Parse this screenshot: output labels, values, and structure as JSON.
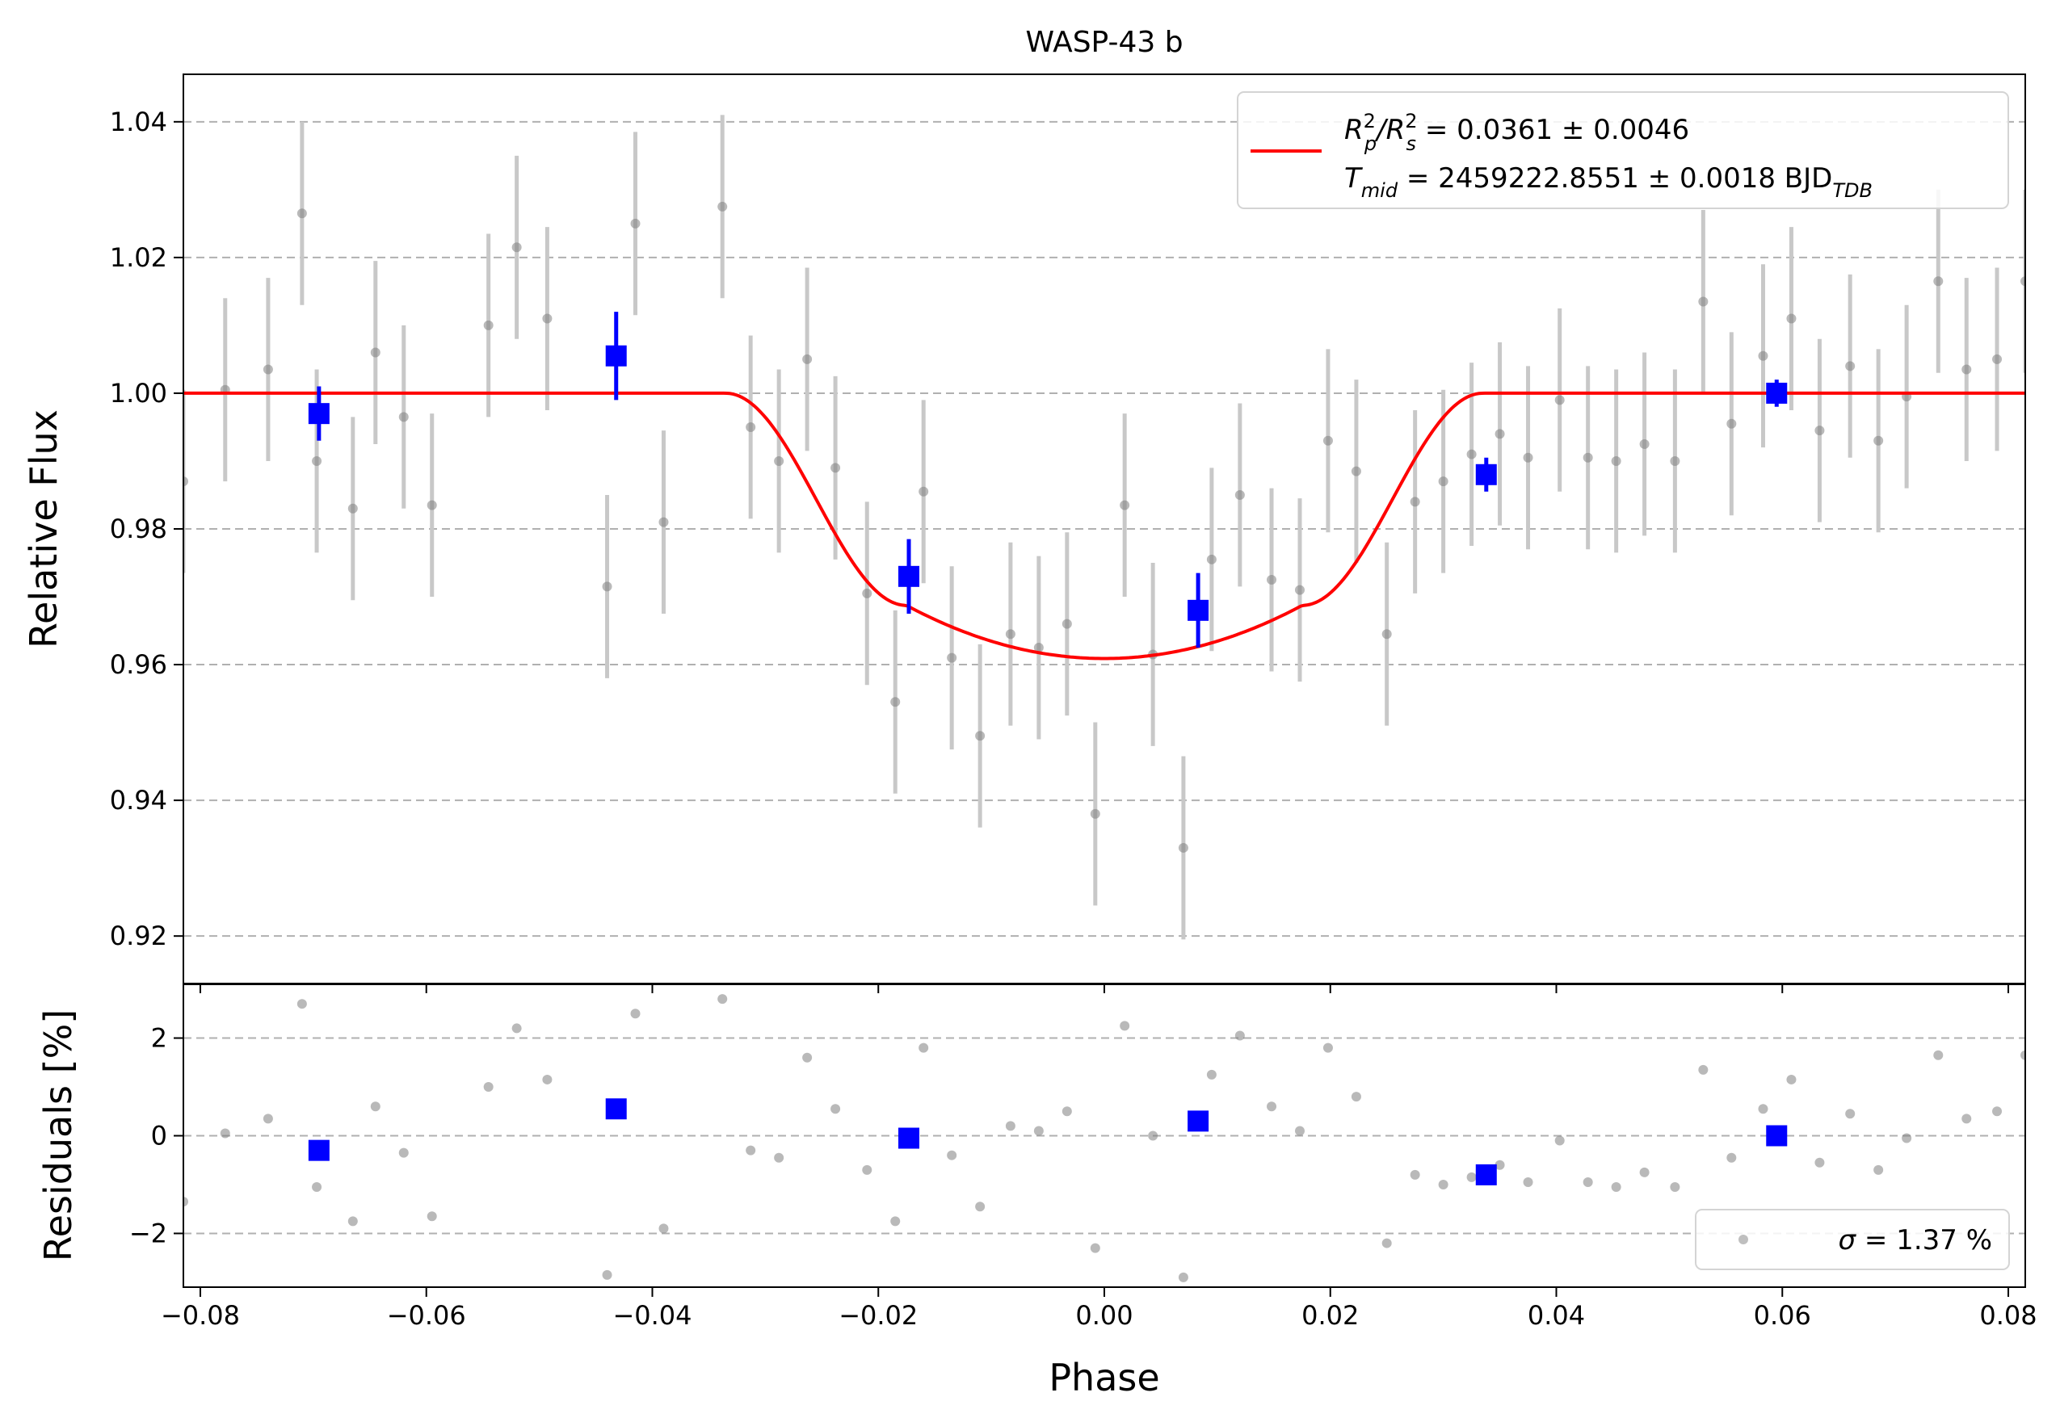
{
  "chart_data": [
    {
      "type": "scatter",
      "title": "WASP-43 b",
      "xlabel": "",
      "ylabel": "Relative Flux",
      "xlim": [
        -0.0815,
        0.0815
      ],
      "ylim": [
        0.913,
        1.047
      ],
      "xticks": [
        -0.08,
        -0.06,
        -0.04,
        -0.02,
        0.0,
        0.02,
        0.04,
        0.06,
        0.08
      ],
      "yticks": [
        0.92,
        0.94,
        0.96,
        0.98,
        1.0,
        1.02,
        1.04
      ],
      "ytick_labels": [
        "0.92",
        "0.94",
        "0.96",
        "0.98",
        "1.00",
        "1.02",
        "1.04"
      ],
      "grid": "horizontal dashed",
      "legend": {
        "placement": "top-right",
        "line1": {
          "main": "R",
          "sup1": "2",
          "sub1": "p",
          "mid": "/R",
          "sup2": "2",
          "sub2": "s",
          "tail": " = 0.0361 ± 0.0046"
        },
        "line2": {
          "main": "T",
          "sub1": "mid",
          "tail": " = 2459222.8551 ± 0.0018 BJD",
          "sub2": "TDB"
        }
      },
      "colors": {
        "model": "#ff0000",
        "binned": "#0000ff",
        "raw": "#808080",
        "raw_err": "#c8c8c8",
        "grid": "#b0b0b0"
      },
      "raw_series": {
        "x": [
          -0.0815,
          -0.0778,
          -0.074,
          -0.071,
          -0.0697,
          -0.0665,
          -0.0645,
          -0.062,
          -0.0595,
          -0.0545,
          -0.052,
          -0.0493,
          -0.044,
          -0.0415,
          -0.039,
          -0.0338,
          -0.0313,
          -0.0288,
          -0.0263,
          -0.0238,
          -0.021,
          -0.0185,
          -0.016,
          -0.0135,
          -0.011,
          -0.0083,
          -0.0058,
          -0.0033,
          -0.0008,
          0.0018,
          0.0043,
          0.007,
          0.0095,
          0.012,
          0.0148,
          0.0173,
          0.0198,
          0.0223,
          0.025,
          0.0275,
          0.03,
          0.0325,
          0.035,
          0.0375,
          0.0403,
          0.0428,
          0.0453,
          0.0478,
          0.0505,
          0.053,
          0.0555,
          0.0583,
          0.0608,
          0.0633,
          0.066,
          0.0685,
          0.071,
          0.0738,
          0.0763,
          0.079,
          0.0815
        ],
        "y": [
          0.987,
          1.0005,
          1.0035,
          1.0265,
          0.99,
          0.983,
          1.006,
          0.9965,
          0.9835,
          1.01,
          1.0215,
          1.011,
          0.9715,
          1.025,
          0.981,
          1.0275,
          0.995,
          0.99,
          1.005,
          0.989,
          0.9705,
          0.9545,
          0.9855,
          0.961,
          0.9495,
          0.9645,
          0.9625,
          0.966,
          0.938,
          0.9835,
          0.9615,
          0.933,
          0.9755,
          0.985,
          0.9725,
          0.971,
          0.993,
          0.9885,
          0.9645,
          0.984,
          0.987,
          0.991,
          0.994,
          0.9905,
          0.999,
          0.9905,
          0.99,
          0.9925,
          0.99,
          1.0135,
          0.9955,
          1.0055,
          1.011,
          0.9945,
          1.004,
          0.993,
          0.9995,
          1.0165,
          1.0035,
          1.005,
          1.0165
        ],
        "err": 0.0135
      },
      "binned_series": {
        "x": [
          -0.0695,
          -0.0432,
          -0.0173,
          0.0083,
          0.0338,
          0.0595
        ],
        "y": [
          0.997,
          1.0055,
          0.973,
          0.968,
          0.988,
          1.0
        ],
        "err": [
          0.004,
          0.0065,
          0.0055,
          0.0055,
          0.0025,
          0.002
        ]
      },
      "model": {
        "baseline": 1.0,
        "depth": 0.0391,
        "t1": -0.0335,
        "t2": -0.0175,
        "t3": 0.0175,
        "t4": 0.0335
      }
    },
    {
      "type": "scatter",
      "title": "",
      "xlabel": "Phase",
      "ylabel": "Residuals [%]",
      "xlim": [
        -0.0815,
        0.0815
      ],
      "ylim": [
        -3.1,
        3.1
      ],
      "xticks": [
        -0.08,
        -0.06,
        -0.04,
        -0.02,
        0.0,
        0.02,
        0.04,
        0.06,
        0.08
      ],
      "xtick_labels": [
        "−0.08",
        "−0.06",
        "−0.04",
        "−0.02",
        "0.00",
        "0.02",
        "0.04",
        "0.06",
        "0.08"
      ],
      "yticks": [
        -2,
        0,
        2
      ],
      "ytick_labels": [
        "−2",
        "0",
        "2"
      ],
      "grid": "horizontal dashed",
      "legend": {
        "placement": "bottom-right",
        "symbol": "σ",
        "text": " = 1.37 %"
      },
      "raw_series": {
        "x": [
          -0.0815,
          -0.0778,
          -0.074,
          -0.071,
          -0.0697,
          -0.0665,
          -0.0645,
          -0.062,
          -0.0595,
          -0.0545,
          -0.052,
          -0.0493,
          -0.044,
          -0.0415,
          -0.039,
          -0.0338,
          -0.0313,
          -0.0288,
          -0.0263,
          -0.0238,
          -0.021,
          -0.0185,
          -0.016,
          -0.0135,
          -0.011,
          -0.0083,
          -0.0058,
          -0.0033,
          -0.0008,
          0.0018,
          0.0043,
          0.007,
          0.0095,
          0.012,
          0.0148,
          0.0173,
          0.0198,
          0.0223,
          0.025,
          0.0275,
          0.03,
          0.0325,
          0.035,
          0.0375,
          0.0403,
          0.0428,
          0.0453,
          0.0478,
          0.0505,
          0.053,
          0.0555,
          0.0583,
          0.0608,
          0.0633,
          0.066,
          0.0685,
          0.071,
          0.0738,
          0.0763,
          0.079,
          0.0815
        ],
        "y": [
          -1.35,
          0.05,
          0.35,
          2.7,
          -1.05,
          -1.75,
          0.6,
          -0.35,
          -1.65,
          1.0,
          2.2,
          1.15,
          -2.85,
          2.5,
          -1.9,
          2.8,
          -0.3,
          -0.45,
          1.6,
          0.55,
          -0.7,
          -1.75,
          1.8,
          -0.4,
          -1.45,
          0.2,
          0.1,
          0.5,
          -2.3,
          2.25,
          0.0,
          -2.9,
          1.25,
          2.05,
          0.6,
          0.1,
          1.8,
          0.8,
          -2.2,
          -0.8,
          -1.0,
          -0.85,
          -0.6,
          -0.95,
          -0.1,
          -0.95,
          -1.05,
          -0.75,
          -1.05,
          1.35,
          -0.45,
          0.55,
          1.15,
          -0.55,
          0.45,
          -0.7,
          -0.05,
          1.65,
          0.35,
          0.5,
          1.65
        ]
      },
      "binned_series": {
        "x": [
          -0.0695,
          -0.0432,
          -0.0173,
          0.0083,
          0.0338,
          0.0595
        ],
        "y": [
          -0.3,
          0.55,
          -0.05,
          0.3,
          -0.8,
          0.0
        ]
      }
    }
  ]
}
